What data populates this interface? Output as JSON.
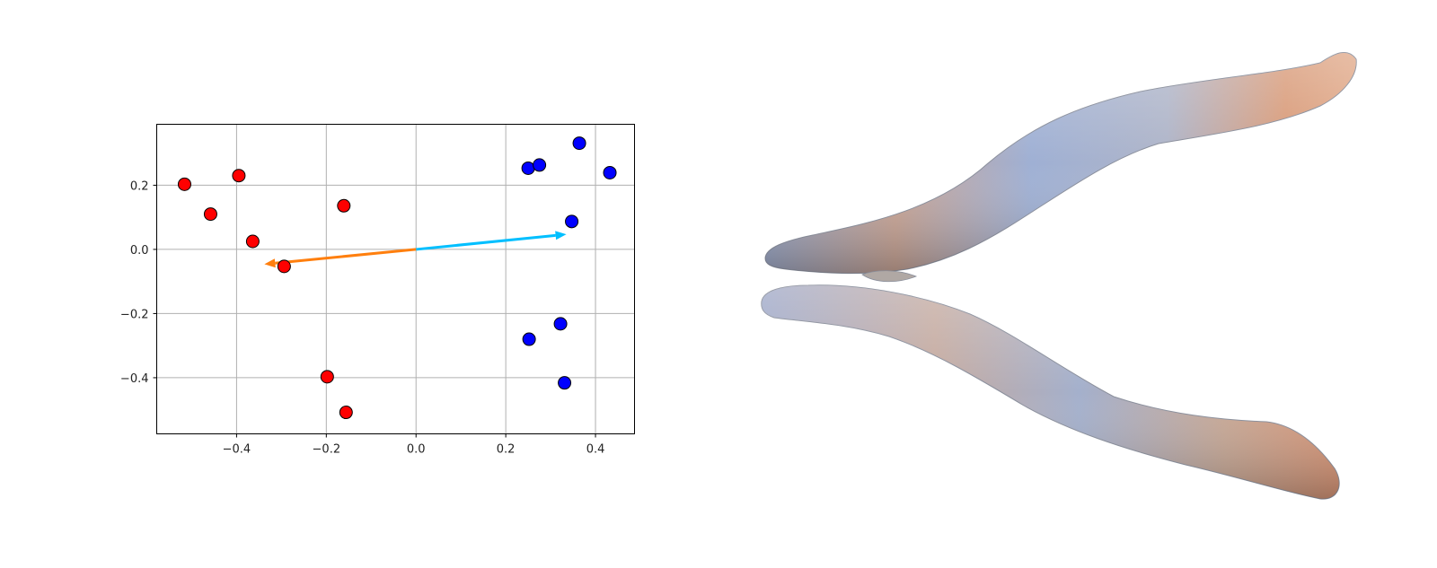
{
  "chart_data": {
    "type": "scatter",
    "title": "",
    "xlabel": "",
    "ylabel": "",
    "xlim": [
      -0.578,
      0.487
    ],
    "ylim": [
      -0.575,
      0.39
    ],
    "xticks": [
      -0.4,
      -0.2,
      0.0,
      0.2,
      0.4
    ],
    "xtick_labels": [
      "−0.4",
      "−0.2",
      "0.0",
      "0.2",
      "0.4"
    ],
    "yticks": [
      0.2,
      0.0,
      -0.2,
      -0.4
    ],
    "ytick_labels": [
      "0.2",
      "0.0",
      "−0.2",
      "−0.4"
    ],
    "grid": true,
    "legend": "none",
    "series": [
      {
        "color": "#ff0000",
        "points": [
          [
            -0.516,
            0.203
          ],
          [
            -0.458,
            0.11
          ],
          [
            -0.395,
            0.23
          ],
          [
            -0.364,
            0.025
          ],
          [
            -0.294,
            -0.053
          ],
          [
            -0.161,
            0.136
          ],
          [
            -0.198,
            -0.397
          ],
          [
            -0.156,
            -0.508
          ]
        ]
      },
      {
        "color": "#0000ff",
        "points": [
          [
            0.25,
            0.253
          ],
          [
            0.275,
            0.263
          ],
          [
            0.364,
            0.331
          ],
          [
            0.432,
            0.239
          ],
          [
            0.347,
            0.087
          ],
          [
            0.252,
            -0.28
          ],
          [
            0.322,
            -0.232
          ],
          [
            0.331,
            -0.416
          ]
        ]
      }
    ],
    "annotations": [
      {
        "type": "arrow",
        "color": "#00bfff",
        "from": [
          0.0,
          0.0
        ],
        "to": [
          0.335,
          0.047
        ]
      },
      {
        "type": "arrow",
        "color": "#ff7f0e",
        "from": [
          0.0,
          0.0
        ],
        "to": [
          -0.338,
          -0.046
        ]
      }
    ]
  },
  "mesh_render": {
    "colors": {
      "blue": "#8ea0c4",
      "orange": "#d69a7a",
      "grey": "#b9bcc4"
    }
  }
}
